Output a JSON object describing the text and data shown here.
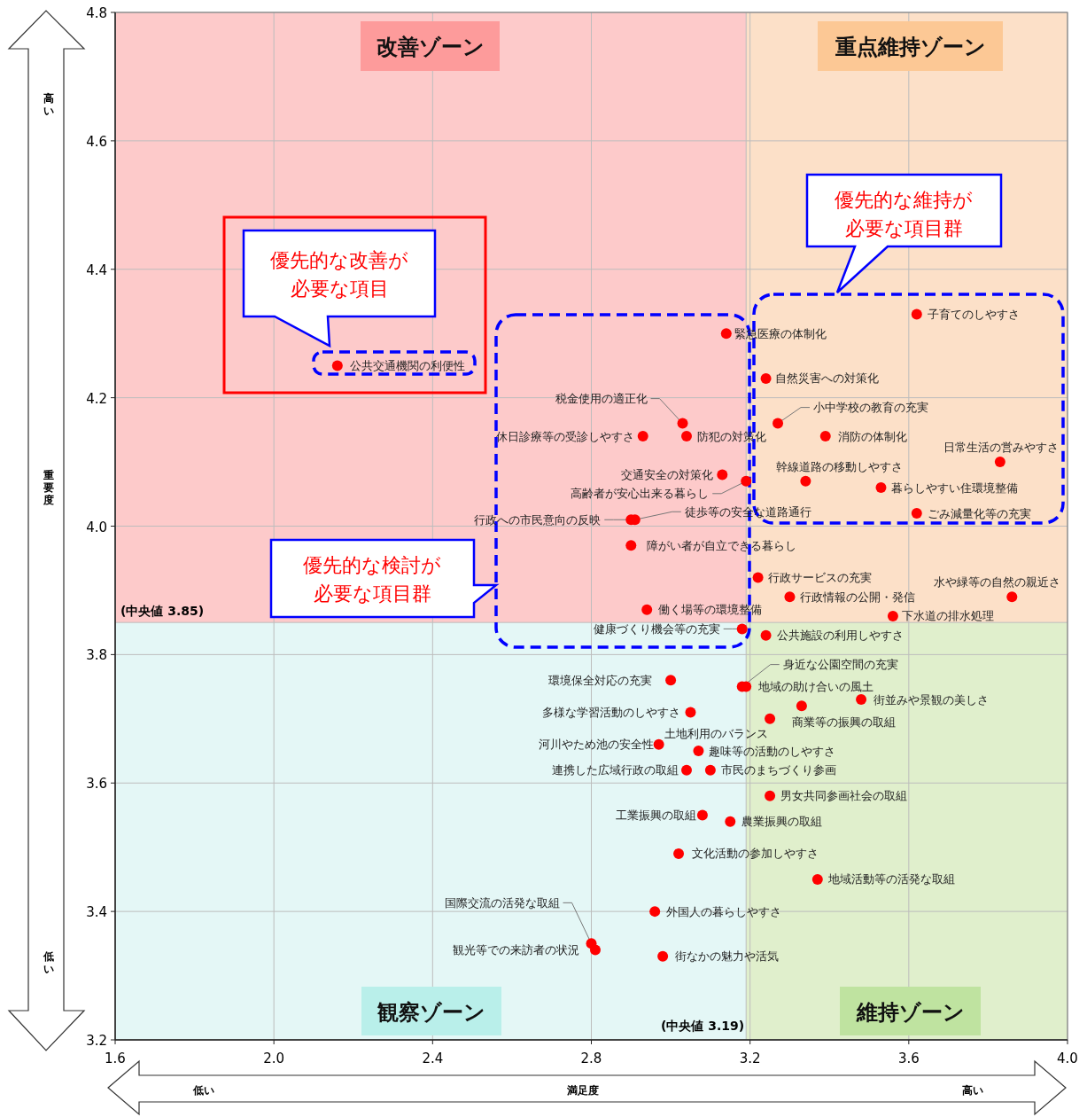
{
  "chart_data": {
    "type": "scatter",
    "xlabel": "満足度",
    "ylabel": "重要度",
    "xlim": [
      1.6,
      4.0
    ],
    "xticks": [
      1.6,
      {
        "value": 2,
        "label": "2.0"
      },
      2.4,
      2.8,
      3.2,
      3.6,
      {
        "value": 4,
        "label": "4.0"
      }
    ],
    "ylim": [
      3.2,
      4.8
    ],
    "yticks": [
      3.2,
      3.4,
      3.6,
      3.8,
      {
        "value": 4,
        "label": "4.0"
      },
      4.2,
      4.4,
      4.6,
      4.8
    ],
    "grid": true,
    "marker": "circle",
    "bands": [
      {
        "axis": "y",
        "from": 3.2,
        "to": 3.85,
        "color": "#e4f7f6"
      },
      {
        "axis": "y",
        "from": 3.85,
        "to": 4.8,
        "color": "#fdcaca"
      }
    ],
    "ref_lines": [
      {
        "axis": "y",
        "value": 3.85,
        "label": "(中央値 3.85)"
      },
      {
        "axis": "x",
        "value": 3.19,
        "label": "(中央値 3.19)"
      }
    ],
    "series": [
      {
        "color": "#ff0000",
        "x": [
          2.16,
          3.14,
          3.62,
          3.24,
          3.03,
          3.04,
          2.93,
          3.27,
          3.39,
          3.83,
          3.13,
          3.19,
          3.34,
          3.53,
          2.9,
          2.91,
          3.62,
          2.9,
          3.22,
          3.3,
          3.86,
          2.94,
          3.56,
          3.18,
          3.24,
          3.18,
          3.19,
          3.0,
          3.48,
          3.33,
          3.05,
          3.25,
          2.97,
          3.07,
          3.04,
          3.1,
          3.25,
          3.08,
          3.15,
          3.02,
          3.37,
          2.96,
          2.8,
          2.81,
          2.98
        ],
        "values": [
          4.25,
          4.3,
          4.33,
          4.23,
          4.16,
          4.14,
          4.14,
          4.16,
          4.14,
          4.1,
          4.08,
          4.07,
          4.07,
          4.06,
          4.01,
          4.01,
          4.02,
          3.97,
          3.92,
          3.89,
          3.89,
          3.87,
          3.86,
          3.84,
          3.83,
          3.75,
          3.75,
          3.76,
          3.73,
          3.72,
          3.71,
          3.7,
          3.66,
          3.65,
          3.62,
          3.62,
          3.58,
          3.55,
          3.54,
          3.49,
          3.45,
          3.4,
          3.35,
          3.34,
          3.33
        ]
      }
    ],
    "annotations": [
      "改善ゾーン",
      "重点維持ゾーン",
      "観察ゾーン",
      "維持ゾーン",
      "優先的な改善が必要な項目",
      "優先的な維持が必要な項目群",
      "優先的な検討が必要な項目群",
      "高い",
      "低い",
      "低い",
      "高い",
      {
        "text": "公共交通機関の利便性",
        "x": 2.16,
        "y": 4.25
      },
      {
        "text": "緊急医療の体制化",
        "x": 3.14,
        "y": 4.3
      },
      {
        "text": "子育てのしやすさ",
        "x": 3.62,
        "y": 4.33
      },
      {
        "text": "自然災害への対策化",
        "x": 3.24,
        "y": 4.23
      },
      {
        "text": "税金使用の適正化",
        "x": 3.03,
        "y": 4.16
      },
      {
        "text": "防犯の対策化",
        "x": 3.04,
        "y": 4.14
      },
      {
        "text": "休日診療等の受診しやすさ",
        "x": 2.93,
        "y": 4.14
      },
      {
        "text": "小中学校の教育の充実",
        "x": 3.27,
        "y": 4.16
      },
      {
        "text": "消防の体制化",
        "x": 3.39,
        "y": 4.14
      },
      {
        "text": "日常生活の営みやすさ",
        "x": 3.83,
        "y": 4.1
      },
      {
        "text": "交通安全の対策化",
        "x": 3.13,
        "y": 4.08
      },
      {
        "text": "高齢者が安心出来る暮らし",
        "x": 3.19,
        "y": 4.07
      },
      {
        "text": "幹線道路の移動しやすさ",
        "x": 3.34,
        "y": 4.07
      },
      {
        "text": "暮らしやすい住環境整備",
        "x": 3.53,
        "y": 4.06
      },
      {
        "text": "行政への市民意向の反映",
        "x": 2.9,
        "y": 4.01
      },
      {
        "text": "徒歩等の安全な道路通行",
        "x": 2.91,
        "y": 4.01
      },
      {
        "text": "ごみ減量化等の充実",
        "x": 3.62,
        "y": 4.02
      },
      {
        "text": "障がい者が自立できる暮らし",
        "x": 2.9,
        "y": 3.97
      },
      {
        "text": "行政サービスの充実",
        "x": 3.22,
        "y": 3.92
      },
      {
        "text": "行政情報の公開・発信",
        "x": 3.3,
        "y": 3.89
      },
      {
        "text": "水や緑等の自然の親近さ",
        "x": 3.86,
        "y": 3.89
      },
      {
        "text": "働く場等の環境整備",
        "x": 2.94,
        "y": 3.87
      },
      {
        "text": "下水道の排水処理",
        "x": 3.56,
        "y": 3.86
      },
      {
        "text": "健康づくり機会等の充実",
        "x": 3.18,
        "y": 3.84
      },
      {
        "text": "公共施設の利用しやすさ",
        "x": 3.24,
        "y": 3.83
      },
      {
        "text": "身近な公園空間の充実",
        "x": 3.18,
        "y": 3.75
      },
      {
        "text": "地域の助け合いの風土",
        "x": 3.19,
        "y": 3.75
      },
      {
        "text": "環境保全対応の充実",
        "x": 3.0,
        "y": 3.76
      },
      {
        "text": "街並みや景観の美しさ",
        "x": 3.48,
        "y": 3.73
      },
      {
        "text": "商業等の振興の取組",
        "x": 3.33,
        "y": 3.72
      },
      {
        "text": "多様な学習活動のしやすさ",
        "x": 3.05,
        "y": 3.71
      },
      {
        "text": "土地利用のバランス",
        "x": 3.25,
        "y": 3.7
      },
      {
        "text": "河川やため池の安全性",
        "x": 2.97,
        "y": 3.66
      },
      {
        "text": "趣味等の活動のしやすさ",
        "x": 3.07,
        "y": 3.65
      },
      {
        "text": "連携した広域行政の取組",
        "x": 3.04,
        "y": 3.62
      },
      {
        "text": "市民のまちづくり参画",
        "x": 3.1,
        "y": 3.62
      },
      {
        "text": "男女共同参画社会の取組",
        "x": 3.25,
        "y": 3.58
      },
      {
        "text": "工業振興の取組",
        "x": 3.08,
        "y": 3.55
      },
      {
        "text": "農業振興の取組",
        "x": 3.15,
        "y": 3.54
      },
      {
        "text": "文化活動の参加しやすさ",
        "x": 3.02,
        "y": 3.49
      },
      {
        "text": "地域活動等の活発な取組",
        "x": 3.37,
        "y": 3.45
      },
      {
        "text": "外国人の暮らしやすさ",
        "x": 2.96,
        "y": 3.4
      },
      {
        "text": "国際交流の活発な取組",
        "x": 2.8,
        "y": 3.35
      },
      {
        "text": "観光等での来訪者の状況",
        "x": 2.81,
        "y": 3.34
      },
      {
        "text": "街なかの魅力や活気",
        "x": 2.98,
        "y": 3.33
      }
    ]
  }
}
